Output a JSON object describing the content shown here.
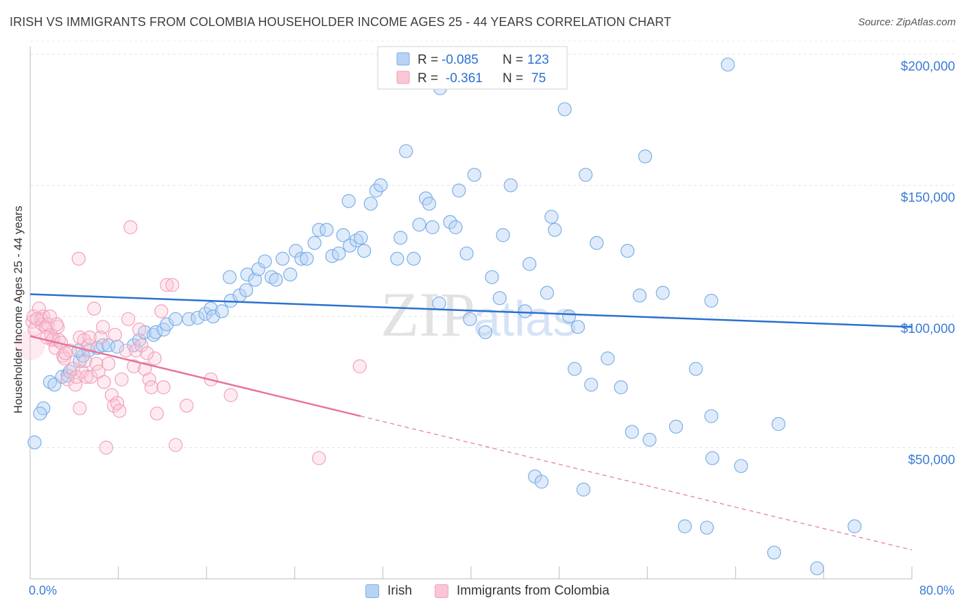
{
  "title": "IRISH VS IMMIGRANTS FROM COLOMBIA HOUSEHOLDER INCOME AGES 25 - 44 YEARS CORRELATION CHART",
  "source": "Source: ZipAtlas.com",
  "watermark": {
    "zip": "ZIP",
    "atlas": "atlas"
  },
  "stats_legend": [
    {
      "r_label": "R =",
      "r_value": "-0.085",
      "n_label": "N =",
      "n_value": "123"
    },
    {
      "r_label": "R =",
      "r_value": "-0.361",
      "n_label": "N =",
      "n_value": "75"
    }
  ],
  "chart_data": {
    "type": "scatter",
    "title": "IRISH VS IMMIGRANTS FROM COLOMBIA HOUSEHOLDER INCOME AGES 25 - 44 YEARS CORRELATION CHART",
    "xlabel": "",
    "ylabel": "Householder Income Ages 25 - 44 years",
    "xlim": [
      0,
      80
    ],
    "ylim": [
      0,
      205000
    ],
    "x_tick_labels": [
      "0.0%",
      "80.0%"
    ],
    "y_ticks": [
      50000,
      100000,
      150000,
      200000
    ],
    "y_tick_labels": [
      "$50,000",
      "$100,000",
      "$150,000",
      "$200,000"
    ],
    "grid": true,
    "legend_position": "top-center",
    "series": [
      {
        "name": "Irish",
        "color": "#7aaee8",
        "trend": {
          "x": [
            0,
            80
          ],
          "y": [
            108500,
            96000
          ],
          "color": "#2a6fcf"
        },
        "points": [
          [
            0.4,
            52000
          ],
          [
            1.2,
            65000
          ],
          [
            0.9,
            63000
          ],
          [
            1.8,
            75000
          ],
          [
            2.2,
            74000
          ],
          [
            2.9,
            77000
          ],
          [
            3.4,
            77500
          ],
          [
            3.6,
            79000
          ],
          [
            4.5,
            83000
          ],
          [
            4.8,
            85000
          ],
          [
            4.4,
            87000
          ],
          [
            5.3,
            87000
          ],
          [
            6.1,
            88000
          ],
          [
            6.6,
            89000
          ],
          [
            7.1,
            89000
          ],
          [
            7.9,
            88500
          ],
          [
            9.4,
            89000
          ],
          [
            9.9,
            91000
          ],
          [
            10.4,
            94000
          ],
          [
            11.2,
            93000
          ],
          [
            11.4,
            94000
          ],
          [
            12.1,
            95000
          ],
          [
            12.4,
            97000
          ],
          [
            13.2,
            99000
          ],
          [
            14.4,
            99000
          ],
          [
            15.2,
            99500
          ],
          [
            15.9,
            101000
          ],
          [
            16.4,
            103000
          ],
          [
            16.6,
            100000
          ],
          [
            17.4,
            102000
          ],
          [
            18.2,
            106000
          ],
          [
            18.1,
            115000
          ],
          [
            19.0,
            108000
          ],
          [
            19.6,
            110000
          ],
          [
            19.7,
            116000
          ],
          [
            20.4,
            114000
          ],
          [
            20.7,
            118000
          ],
          [
            21.3,
            121000
          ],
          [
            21.9,
            115000
          ],
          [
            22.3,
            114000
          ],
          [
            22.9,
            122000
          ],
          [
            23.6,
            116000
          ],
          [
            24.1,
            125000
          ],
          [
            24.6,
            122000
          ],
          [
            25.1,
            122000
          ],
          [
            25.8,
            128000
          ],
          [
            26.2,
            133000
          ],
          [
            26.9,
            133000
          ],
          [
            27.4,
            123000
          ],
          [
            28.0,
            124000
          ],
          [
            28.4,
            131000
          ],
          [
            29.0,
            127000
          ],
          [
            29.6,
            129000
          ],
          [
            30.0,
            130000
          ],
          [
            30.3,
            125000
          ],
          [
            30.9,
            143000
          ],
          [
            31.4,
            148000
          ],
          [
            31.8,
            150000
          ],
          [
            28.9,
            144000
          ],
          [
            33.3,
            122000
          ],
          [
            33.6,
            130000
          ],
          [
            34.1,
            163000
          ],
          [
            34.8,
            122000
          ],
          [
            35.3,
            135000
          ],
          [
            35.9,
            145000
          ],
          [
            36.2,
            143000
          ],
          [
            36.5,
            134000
          ],
          [
            37.2,
            187000
          ],
          [
            37.1,
            105000
          ],
          [
            38.1,
            136000
          ],
          [
            38.6,
            134000
          ],
          [
            38.9,
            148000
          ],
          [
            39.6,
            124000
          ],
          [
            39.9,
            99000
          ],
          [
            40.3,
            154000
          ],
          [
            41.3,
            94000
          ],
          [
            41.9,
            115000
          ],
          [
            42.6,
            107000
          ],
          [
            42.9,
            193000
          ],
          [
            42.9,
            131000
          ],
          [
            43.6,
            150000
          ],
          [
            44.9,
            102000
          ],
          [
            45.3,
            120000
          ],
          [
            45.8,
            39000
          ],
          [
            46.4,
            37000
          ],
          [
            46.9,
            109000
          ],
          [
            47.3,
            138000
          ],
          [
            47.6,
            133000
          ],
          [
            48.5,
            179000
          ],
          [
            48.9,
            100000
          ],
          [
            49.4,
            80000
          ],
          [
            49.7,
            96000
          ],
          [
            50.2,
            34000
          ],
          [
            50.4,
            154000
          ],
          [
            50.9,
            74000
          ],
          [
            51.4,
            128000
          ],
          [
            52.4,
            84000
          ],
          [
            53.6,
            73000
          ],
          [
            54.2,
            125000
          ],
          [
            54.6,
            56000
          ],
          [
            55.3,
            108000
          ],
          [
            55.8,
            161000
          ],
          [
            56.2,
            53000
          ],
          [
            57.4,
            109000
          ],
          [
            58.6,
            58000
          ],
          [
            59.4,
            20000
          ],
          [
            60.4,
            80000
          ],
          [
            61.4,
            19500
          ],
          [
            61.8,
            62000
          ],
          [
            61.8,
            106000
          ],
          [
            61.9,
            46000
          ],
          [
            63.3,
            196000
          ],
          [
            64.5,
            43000
          ],
          [
            67.5,
            10000
          ],
          [
            67.9,
            59000
          ],
          [
            71.4,
            4000
          ],
          [
            74.8,
            20000
          ]
        ]
      },
      {
        "name": "Immigrants from Colombia",
        "color": "#f2a0b8",
        "trend": {
          "x": [
            0,
            30
          ],
          "y": [
            92500,
            62000
          ],
          "dashed_to": [
            80,
            11000
          ],
          "color": "#e8739a"
        },
        "points": [
          [
            0.2,
            98000
          ],
          [
            0.3,
            100000
          ],
          [
            0.4,
            95000
          ],
          [
            0.8,
            103000
          ],
          [
            1.0,
            99000
          ],
          [
            1.1,
            97000
          ],
          [
            1.2,
            100000
          ],
          [
            1.4,
            96000
          ],
          [
            1.6,
            97000
          ],
          [
            1.8,
            100000
          ],
          [
            1.9,
            93000
          ],
          [
            2.0,
            91000
          ],
          [
            2.1,
            91500
          ],
          [
            2.3,
            88000
          ],
          [
            2.5,
            96000
          ],
          [
            2.6,
            91000
          ],
          [
            2.8,
            90000
          ],
          [
            3.0,
            85000
          ],
          [
            3.1,
            84000
          ],
          [
            3.4,
            76000
          ],
          [
            3.6,
            87000
          ],
          [
            3.9,
            80000
          ],
          [
            4.1,
            74000
          ],
          [
            4.2,
            77000
          ],
          [
            4.4,
            122000
          ],
          [
            4.5,
            92000
          ],
          [
            4.7,
            79000
          ],
          [
            4.9,
            91000
          ],
          [
            5.0,
            83000
          ],
          [
            5.1,
            77000
          ],
          [
            5.3,
            89000
          ],
          [
            5.4,
            92000
          ],
          [
            5.5,
            77000
          ],
          [
            5.8,
            103000
          ],
          [
            6.0,
            82000
          ],
          [
            6.2,
            79000
          ],
          [
            6.4,
            92000
          ],
          [
            6.6,
            96000
          ],
          [
            6.7,
            75000
          ],
          [
            6.9,
            50000
          ],
          [
            7.1,
            82000
          ],
          [
            7.4,
            70000
          ],
          [
            7.6,
            66000
          ],
          [
            7.9,
            67000
          ],
          [
            8.1,
            64000
          ],
          [
            8.3,
            76000
          ],
          [
            8.7,
            87000
          ],
          [
            8.9,
            99000
          ],
          [
            9.1,
            134000
          ],
          [
            9.4,
            81000
          ],
          [
            9.6,
            87000
          ],
          [
            9.9,
            95000
          ],
          [
            10.1,
            89000
          ],
          [
            10.4,
            80000
          ],
          [
            10.8,
            76000
          ],
          [
            11.0,
            73000
          ],
          [
            11.3,
            84000
          ],
          [
            11.5,
            63000
          ],
          [
            11.9,
            102000
          ],
          [
            12.1,
            73000
          ],
          [
            12.4,
            112000
          ],
          [
            12.9,
            112000
          ],
          [
            13.2,
            51000
          ],
          [
            14.2,
            66000
          ],
          [
            16.4,
            76000
          ],
          [
            18.2,
            70000
          ],
          [
            26.2,
            46000
          ],
          [
            29.9,
            81000
          ],
          [
            4.5,
            65000
          ],
          [
            3.2,
            86000
          ],
          [
            1.5,
            92000
          ],
          [
            0.6,
            99000
          ],
          [
            2.4,
            97000
          ],
          [
            7.7,
            93000
          ],
          [
            10.6,
            86000
          ]
        ]
      }
    ]
  },
  "bottom_legend": [
    {
      "label": "Irish",
      "color": "#b7d2f5",
      "border": "#7aaee8"
    },
    {
      "label": "Immigrants from Colombia",
      "color": "#fac5d6",
      "border": "#f2a0b8"
    }
  ],
  "axis_labels": {
    "x_min": "0.0%",
    "x_max": "80.0%",
    "y_title": "Householder Income Ages 25 - 44 years"
  }
}
